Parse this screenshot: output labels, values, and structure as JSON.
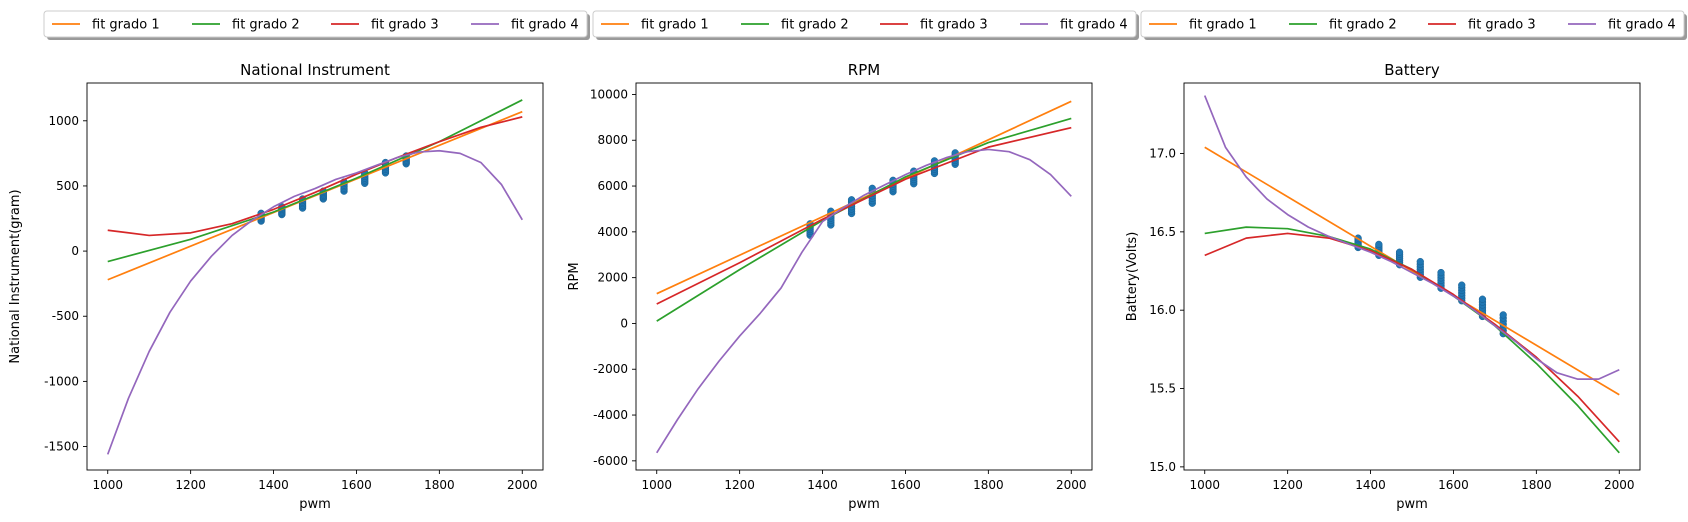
{
  "chart_data": [
    {
      "type": "line",
      "title": "National Instrument",
      "xlabel": "pwm",
      "ylabel": "National Instrument(gram)",
      "xlim": [
        950,
        2050
      ],
      "ylim": [
        -1680,
        1290
      ],
      "xticks": [
        1000,
        1200,
        1400,
        1600,
        1800,
        2000
      ],
      "yticks": [
        -1500,
        -1000,
        -500,
        0,
        500,
        1000
      ],
      "legend": {
        "placement": "top",
        "entries": [
          "fit grado 1",
          "fit grado 2",
          "fit grado 3",
          "fit grado 4"
        ]
      },
      "grid": false,
      "series": [
        {
          "name": "fit grado 1",
          "color": "#ff7f0e",
          "x": [
            1000,
            2000
          ],
          "y": [
            -220,
            1070
          ]
        },
        {
          "name": "fit grado 2",
          "color": "#2ca02c",
          "x": [
            1000,
            1200,
            1400,
            1600,
            1800,
            2000
          ],
          "y": [
            -80,
            90,
            300,
            560,
            840,
            1160
          ]
        },
        {
          "name": "fit grado 3",
          "color": "#d62728",
          "x": [
            1000,
            1100,
            1200,
            1300,
            1400,
            1500,
            1600,
            1700,
            1800,
            1900,
            2000
          ],
          "y": [
            160,
            120,
            140,
            210,
            320,
            450,
            590,
            720,
            840,
            950,
            1030
          ]
        },
        {
          "name": "fit grado 4",
          "color": "#9467bd",
          "x": [
            1000,
            1050,
            1100,
            1150,
            1200,
            1250,
            1300,
            1350,
            1400,
            1450,
            1500,
            1550,
            1600,
            1650,
            1700,
            1750,
            1800,
            1850,
            1900,
            1950,
            2000
          ],
          "y": [
            -1560,
            -1130,
            -770,
            -470,
            -230,
            -40,
            120,
            240,
            340,
            420,
            480,
            550,
            600,
            660,
            720,
            760,
            770,
            750,
            680,
            510,
            240
          ]
        }
      ],
      "scatter": {
        "color": "#1f77b4",
        "x": [
          1370,
          1420,
          1470,
          1520,
          1570,
          1620,
          1670,
          1720
        ],
        "ymin": [
          230,
          280,
          330,
          400,
          460,
          520,
          600,
          670
        ],
        "ymax": [
          290,
          340,
          400,
          460,
          530,
          600,
          680,
          730
        ]
      }
    },
    {
      "type": "line",
      "title": "RPM",
      "xlabel": "pwm",
      "ylabel": "RPM",
      "xlim": [
        950,
        2050
      ],
      "ylim": [
        -6400,
        10500
      ],
      "xticks": [
        1000,
        1200,
        1400,
        1600,
        1800,
        2000
      ],
      "yticks": [
        -6000,
        -4000,
        -2000,
        0,
        2000,
        4000,
        6000,
        8000,
        10000
      ],
      "legend": {
        "placement": "top",
        "entries": [
          "fit grado 1",
          "fit grado 2",
          "fit grado 3",
          "fit grado 4"
        ]
      },
      "grid": false,
      "series": [
        {
          "name": "fit grado 1",
          "color": "#ff7f0e",
          "x": [
            1000,
            2000
          ],
          "y": [
            1300,
            9700
          ]
        },
        {
          "name": "fit grado 2",
          "color": "#2ca02c",
          "x": [
            1000,
            1200,
            1400,
            1600,
            1800,
            2000
          ],
          "y": [
            100,
            2350,
            4500,
            6400,
            7900,
            8950
          ]
        },
        {
          "name": "fit grado 3",
          "color": "#d62728",
          "x": [
            1000,
            1200,
            1400,
            1600,
            1800,
            2000
          ],
          "y": [
            850,
            2650,
            4550,
            6300,
            7700,
            8550
          ]
        },
        {
          "name": "fit grado 4",
          "color": "#9467bd",
          "x": [
            1000,
            1050,
            1100,
            1150,
            1200,
            1250,
            1300,
            1350,
            1400,
            1450,
            1500,
            1550,
            1600,
            1650,
            1700,
            1750,
            1800,
            1850,
            1900,
            1950,
            2000
          ],
          "y": [
            -5650,
            -4200,
            -2850,
            -1650,
            -550,
            450,
            1550,
            3100,
            4450,
            5050,
            5600,
            6050,
            6500,
            6900,
            7250,
            7500,
            7600,
            7500,
            7150,
            6500,
            5550
          ]
        }
      ],
      "scatter": {
        "color": "#1f77b4",
        "x": [
          1370,
          1420,
          1470,
          1520,
          1570,
          1620,
          1670,
          1720
        ],
        "ymin": [
          3850,
          4300,
          4800,
          5250,
          5750,
          6100,
          6550,
          6950
        ],
        "ymax": [
          4350,
          4900,
          5400,
          5900,
          6250,
          6650,
          7100,
          7450
        ]
      }
    },
    {
      "type": "line",
      "title": "Battery",
      "xlabel": "pwm",
      "ylabel": "Battery(Volts)",
      "xlim": [
        950,
        2050
      ],
      "ylim": [
        14.98,
        17.45
      ],
      "xticks": [
        1000,
        1200,
        1400,
        1600,
        1800,
        2000
      ],
      "yticks": [
        15.0,
        15.5,
        16.0,
        16.5,
        17.0
      ],
      "ytick_labels": [
        "15.0",
        "15.5",
        "16.0",
        "16.5",
        "17.0"
      ],
      "legend": {
        "placement": "top",
        "entries": [
          "fit grado 1",
          "fit grado 2",
          "fit grado 3",
          "fit grado 4"
        ]
      },
      "grid": false,
      "series": [
        {
          "name": "fit grado 1",
          "color": "#ff7f0e",
          "x": [
            1000,
            2000
          ],
          "y": [
            17.04,
            15.46
          ]
        },
        {
          "name": "fit grado 2",
          "color": "#2ca02c",
          "x": [
            1000,
            1100,
            1200,
            1300,
            1400,
            1500,
            1600,
            1700,
            1800,
            1900,
            2000
          ],
          "y": [
            16.49,
            16.53,
            16.52,
            16.47,
            16.39,
            16.26,
            16.09,
            15.9,
            15.66,
            15.39,
            15.09
          ]
        },
        {
          "name": "fit grado 3",
          "color": "#d62728",
          "x": [
            1000,
            1100,
            1200,
            1300,
            1400,
            1500,
            1600,
            1700,
            1800,
            1900,
            2000
          ],
          "y": [
            16.35,
            16.46,
            16.49,
            16.46,
            16.38,
            16.26,
            16.1,
            15.91,
            15.7,
            15.45,
            15.16
          ]
        },
        {
          "name": "fit grado 4",
          "color": "#9467bd",
          "x": [
            1000,
            1050,
            1100,
            1150,
            1200,
            1250,
            1300,
            1350,
            1400,
            1450,
            1500,
            1550,
            1600,
            1650,
            1700,
            1750,
            1800,
            1850,
            1900,
            1950,
            2000
          ],
          "y": [
            17.37,
            17.04,
            16.85,
            16.71,
            16.61,
            16.53,
            16.47,
            16.42,
            16.37,
            16.31,
            16.24,
            16.17,
            16.09,
            16.0,
            15.9,
            15.8,
            15.69,
            15.6,
            15.56,
            15.56,
            15.62
          ]
        }
      ],
      "scatter": {
        "color": "#1f77b4",
        "x": [
          1370,
          1420,
          1470,
          1520,
          1570,
          1620,
          1670,
          1720
        ],
        "ymin": [
          16.4,
          16.35,
          16.29,
          16.21,
          16.14,
          16.06,
          15.96,
          15.85
        ],
        "ymax": [
          16.46,
          16.42,
          16.37,
          16.31,
          16.24,
          16.16,
          16.07,
          15.97
        ]
      }
    }
  ]
}
